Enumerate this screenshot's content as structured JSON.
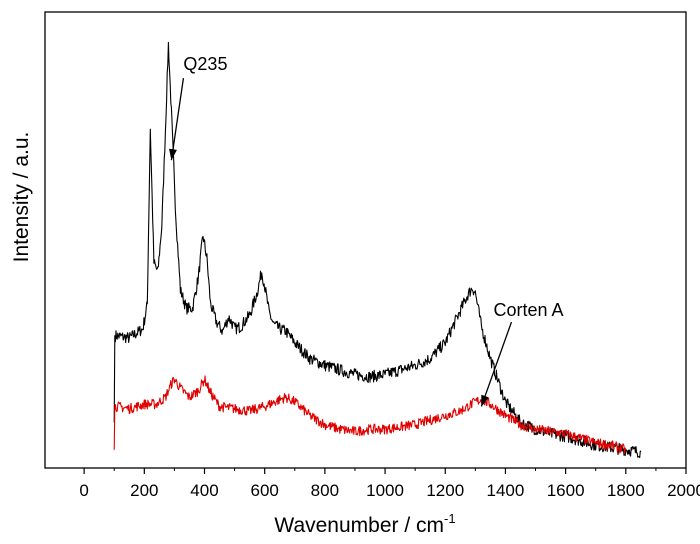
{
  "chart_data": {
    "type": "line",
    "title": "",
    "xlabel": "Wavenumber / cm",
    "xlabel_superscript": "-1",
    "ylabel": "Intensity / a.u.",
    "xlim": [
      -130,
      2000
    ],
    "ylim": [
      0,
      1
    ],
    "xticks": [
      0,
      200,
      400,
      600,
      800,
      1000,
      1200,
      1400,
      1600,
      1800,
      2000
    ],
    "yticks_labeled": false,
    "grid": false,
    "legend": "none",
    "annotations": [
      {
        "text": "Q235",
        "series": "Q235",
        "arrow_from": [
          330,
          0.855
        ],
        "arrow_to": [
          290,
          0.675
        ]
      },
      {
        "text": "Corten A",
        "series": "Corten A",
        "arrow_from": [
          1420,
          0.32
        ],
        "arrow_to": [
          1320,
          0.135
        ]
      }
    ],
    "series": [
      {
        "name": "Q235",
        "color": "#000000",
        "x": [
          100,
          102,
          110,
          150,
          195,
          210,
          220,
          232,
          245,
          258,
          270,
          280,
          290,
          305,
          320,
          340,
          360,
          380,
          395,
          408,
          420,
          440,
          460,
          480,
          490,
          500,
          520,
          550,
          575,
          590,
          600,
          615,
          630,
          650,
          670,
          700,
          750,
          800,
          850,
          900,
          950,
          1000,
          1050,
          1100,
          1150,
          1200,
          1250,
          1275,
          1290,
          1300,
          1320,
          1350,
          1400,
          1450,
          1500,
          1550,
          1600,
          1650,
          1700,
          1750,
          1800,
          1850
        ],
        "y": [
          0.1,
          0.29,
          0.29,
          0.285,
          0.305,
          0.36,
          0.745,
          0.45,
          0.43,
          0.53,
          0.74,
          0.93,
          0.78,
          0.55,
          0.39,
          0.35,
          0.35,
          0.42,
          0.51,
          0.46,
          0.36,
          0.32,
          0.3,
          0.33,
          0.32,
          0.305,
          0.31,
          0.335,
          0.385,
          0.43,
          0.4,
          0.34,
          0.315,
          0.305,
          0.3,
          0.275,
          0.24,
          0.225,
          0.215,
          0.205,
          0.2,
          0.205,
          0.215,
          0.225,
          0.24,
          0.275,
          0.345,
          0.38,
          0.395,
          0.385,
          0.31,
          0.24,
          0.145,
          0.1,
          0.085,
          0.075,
          0.07,
          0.06,
          0.05,
          0.045,
          0.04,
          0.035
        ]
      },
      {
        "name": "Corten A",
        "color": "#e00000",
        "x": [
          100,
          102,
          110,
          150,
          200,
          240,
          270,
          290,
          300,
          320,
          350,
          380,
          400,
          420,
          450,
          500,
          550,
          600,
          650,
          670,
          700,
          750,
          800,
          850,
          900,
          950,
          1000,
          1050,
          1100,
          1150,
          1200,
          1250,
          1300,
          1320,
          1350,
          1400,
          1450,
          1500,
          1550,
          1600,
          1650,
          1700,
          1750,
          1800
        ],
        "y": [
          0.04,
          0.135,
          0.135,
          0.13,
          0.14,
          0.14,
          0.155,
          0.185,
          0.195,
          0.175,
          0.155,
          0.17,
          0.195,
          0.165,
          0.135,
          0.13,
          0.125,
          0.135,
          0.15,
          0.155,
          0.145,
          0.115,
          0.095,
          0.085,
          0.08,
          0.085,
          0.085,
          0.09,
          0.095,
          0.105,
          0.115,
          0.125,
          0.145,
          0.15,
          0.14,
          0.115,
          0.095,
          0.085,
          0.08,
          0.075,
          0.065,
          0.055,
          0.05,
          0.04
        ]
      }
    ]
  }
}
